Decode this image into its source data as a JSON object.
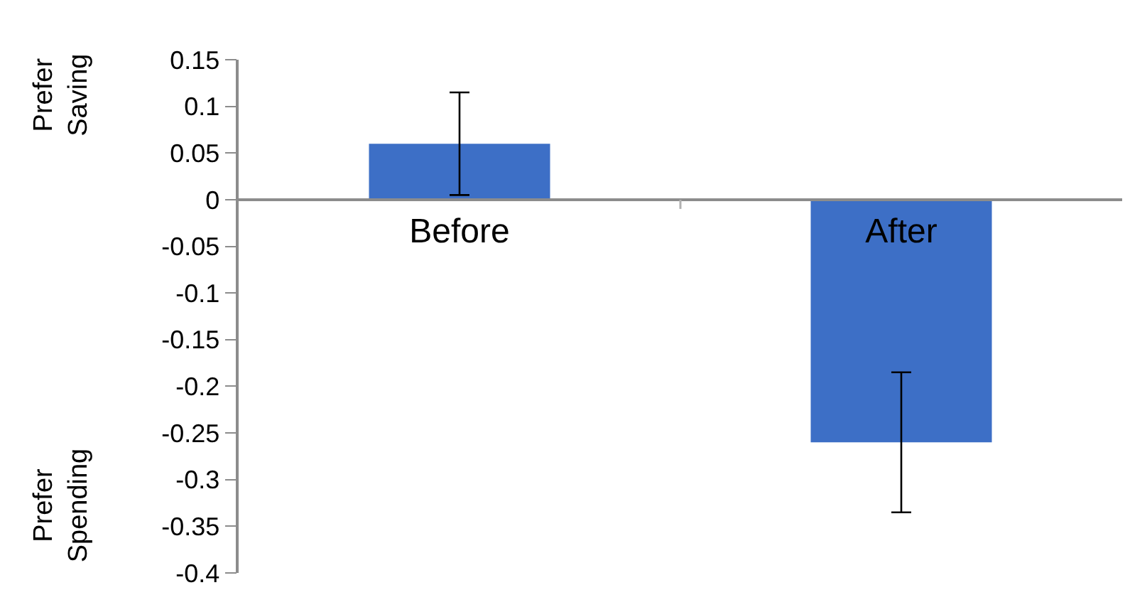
{
  "chart_data": {
    "type": "bar",
    "categories": [
      "Before",
      "After"
    ],
    "values": [
      0.06,
      -0.26
    ],
    "errors": [
      0.055,
      0.075
    ],
    "color": "#3d6fc6",
    "ylim": [
      -0.4,
      0.15
    ],
    "yticks": [
      {
        "value": -0.4,
        "label": "-0.4"
      },
      {
        "value": -0.35,
        "label": "-0.35"
      },
      {
        "value": -0.3,
        "label": "-0.3"
      },
      {
        "value": -0.25,
        "label": "-0.25"
      },
      {
        "value": -0.2,
        "label": "-0.2"
      },
      {
        "value": -0.15,
        "label": "-0.15"
      },
      {
        "value": -0.1,
        "label": "-0.1"
      },
      {
        "value": -0.05,
        "label": "-0.05"
      },
      {
        "value": 0,
        "label": "0"
      },
      {
        "value": 0.05,
        "label": "0.05"
      },
      {
        "value": 0.1,
        "label": "0.1"
      },
      {
        "value": 0.15,
        "label": "0.15"
      }
    ],
    "annotations": [
      "Prefer\nSaving",
      "Prefer\nSpending"
    ]
  }
}
